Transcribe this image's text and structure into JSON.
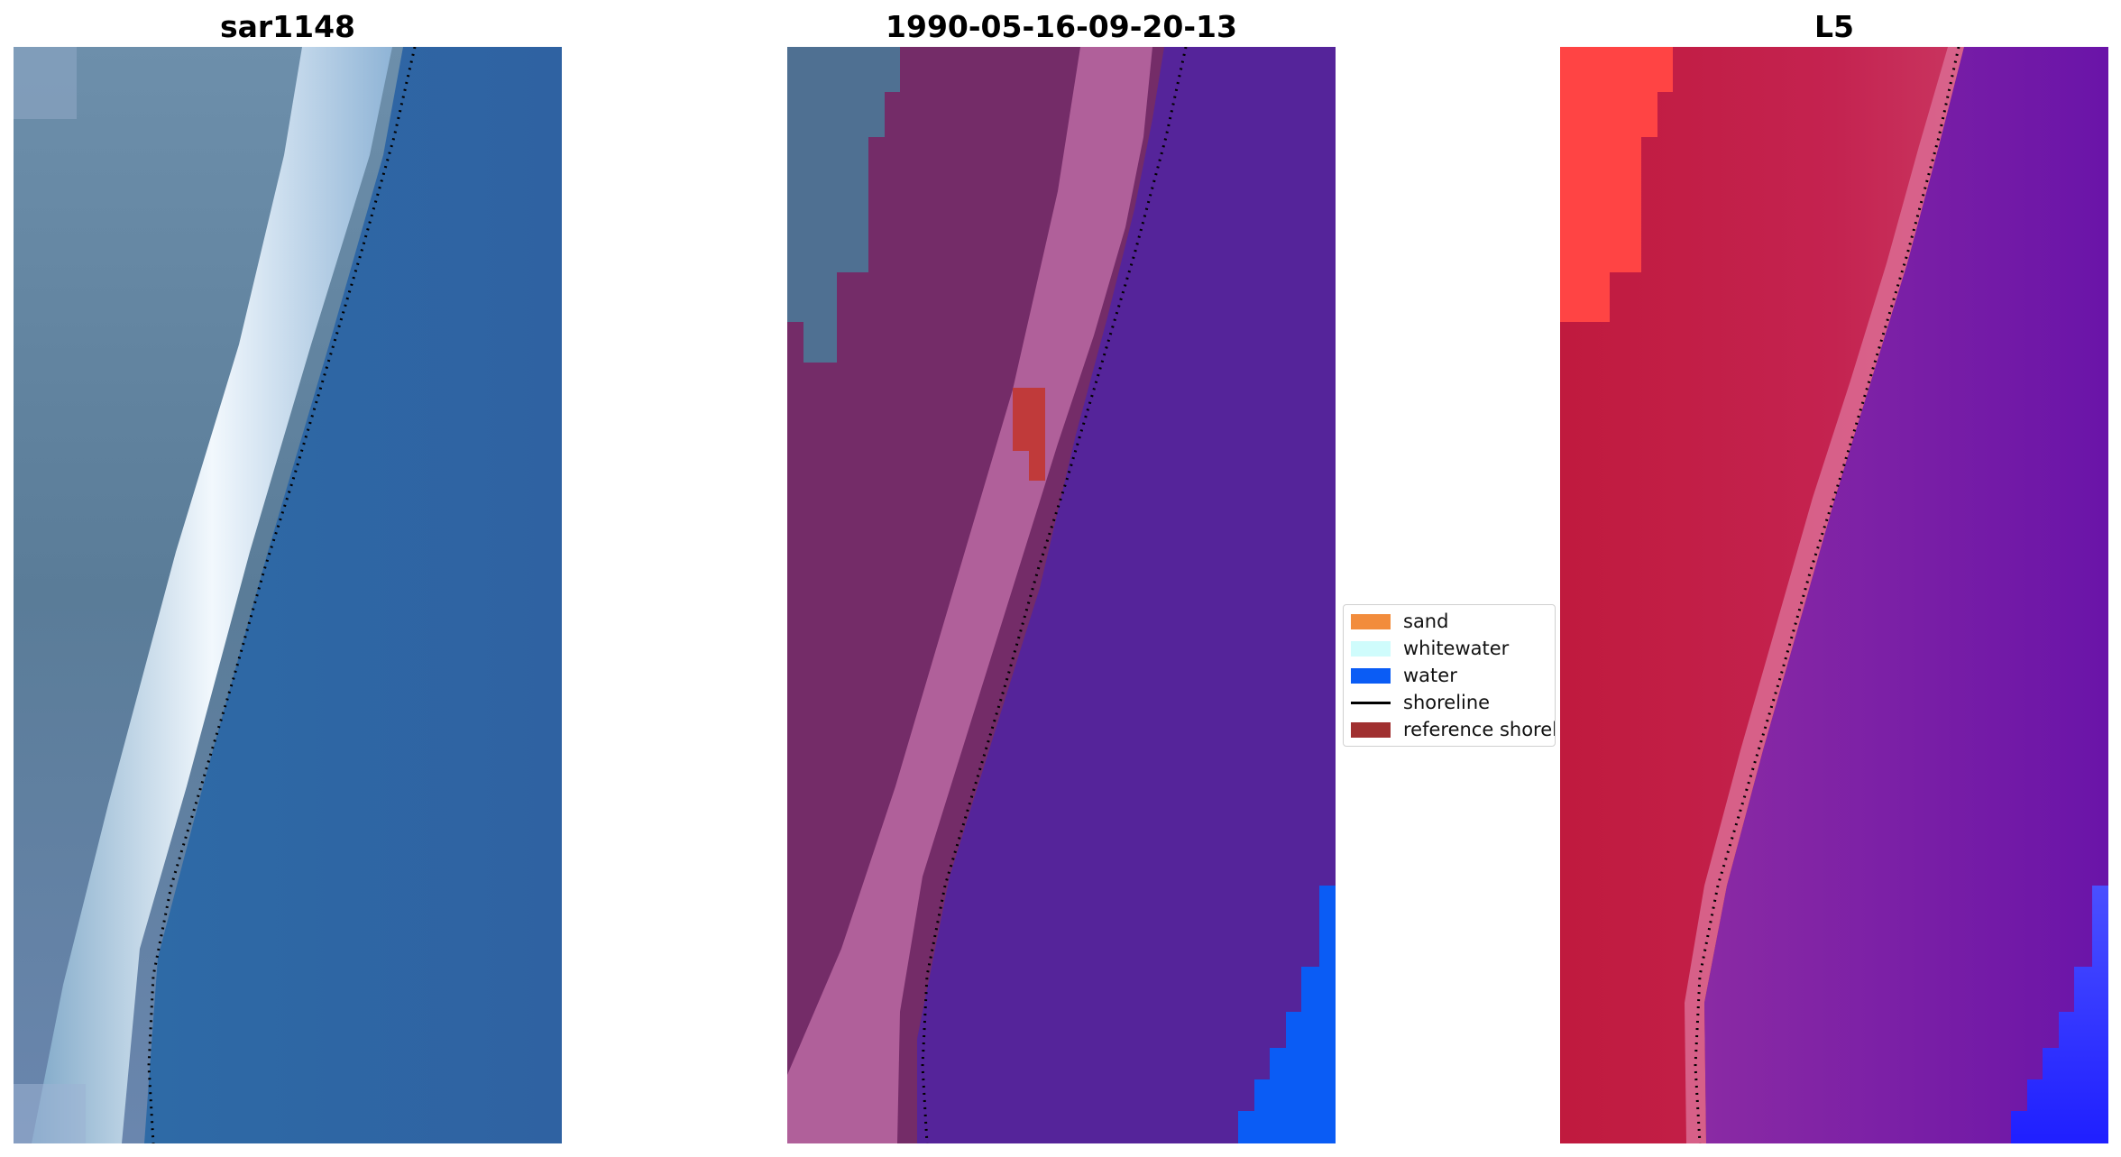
{
  "panels": [
    {
      "title": "sar1148"
    },
    {
      "title": "1990-05-16-09-20-13"
    },
    {
      "title": "L5"
    }
  ],
  "legend": {
    "items": [
      {
        "label": "sand",
        "kind": "patch",
        "color": "#f28c3c"
      },
      {
        "label": "whitewater",
        "kind": "patch",
        "color": "#cffcfc"
      },
      {
        "label": "water",
        "kind": "patch",
        "color": "#0a5cf5"
      },
      {
        "label": "shoreline",
        "kind": "line",
        "color": "#000000"
      },
      {
        "label": "reference shoreline",
        "kind": "patch",
        "color": "#a03030"
      }
    ]
  },
  "colors": {
    "rgb_land": "#5b7f9b",
    "rgb_whitewater": "#dceefa",
    "rgb_water": "#2f68a8",
    "class_land": "#742c68",
    "class_beach": "#b0609a",
    "class_ocean": "#55249a",
    "class_water": "#0a5cf5",
    "class_sand_patch": "#c03a3a",
    "index_land": "#c41d45",
    "index_beach": "#d05a85",
    "index_ocean": "#7a1ea6",
    "index_high": "#ff3333",
    "index_water": "#1f33ff"
  }
}
